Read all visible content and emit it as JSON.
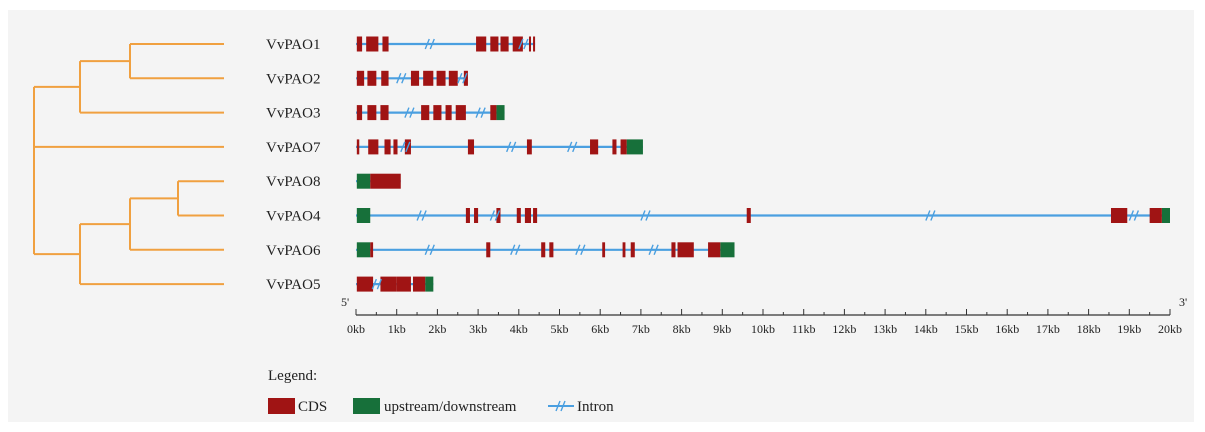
{
  "colors": {
    "background": "#f4f4f4",
    "tree": "#f0a040",
    "cds": "#a01414",
    "utr": "#17703a",
    "intron": "#4a9fe0",
    "axis": "#333333"
  },
  "genes": [
    {
      "name": "VvPAO1",
      "end": 4.4,
      "breaks": [
        1.8,
        4.1
      ],
      "cds": [
        [
          0.02,
          0.15
        ],
        [
          0.25,
          0.55
        ],
        [
          0.65,
          0.8
        ],
        [
          2.95,
          3.2
        ],
        [
          3.3,
          3.5
        ],
        [
          3.55,
          3.75
        ],
        [
          3.85,
          4.1
        ],
        [
          4.25,
          4.3
        ],
        [
          4.35,
          4.4
        ]
      ],
      "utr": []
    },
    {
      "name": "VvPAO2",
      "end": 2.75,
      "breaks": [
        1.1,
        2.6
      ],
      "cds": [
        [
          0.02,
          0.2
        ],
        [
          0.28,
          0.5
        ],
        [
          0.62,
          0.8
        ],
        [
          1.35,
          1.55
        ],
        [
          1.65,
          1.9
        ],
        [
          1.98,
          2.2
        ],
        [
          2.28,
          2.5
        ],
        [
          2.65,
          2.75
        ]
      ],
      "utr": []
    },
    {
      "name": "VvPAO3",
      "end": 3.65,
      "breaks": [
        1.3,
        3.05
      ],
      "cds": [
        [
          0.02,
          0.15
        ],
        [
          0.28,
          0.5
        ],
        [
          0.6,
          0.8
        ],
        [
          1.6,
          1.8
        ],
        [
          1.9,
          2.1
        ],
        [
          2.2,
          2.35
        ],
        [
          2.45,
          2.7
        ],
        [
          3.3,
          3.45
        ]
      ],
      "utr": [
        [
          3.45,
          3.65
        ]
      ]
    },
    {
      "name": "VvPAO7",
      "end": 7.05,
      "breaks": [
        1.2,
        3.8,
        5.3
      ],
      "cds": [
        [
          0.02,
          0.08
        ],
        [
          0.3,
          0.55
        ],
        [
          0.7,
          0.85
        ],
        [
          0.92,
          1.02
        ],
        [
          1.2,
          1.35
        ],
        [
          2.75,
          2.9
        ],
        [
          4.2,
          4.32
        ],
        [
          5.75,
          5.95
        ],
        [
          6.3,
          6.4
        ],
        [
          6.5,
          6.65
        ]
      ],
      "utr": [
        [
          6.65,
          7.05
        ]
      ]
    },
    {
      "name": "VvPAO8",
      "end": 1.1,
      "breaks": [],
      "cds": [
        [
          0.35,
          1.1
        ]
      ],
      "utr": [
        [
          0.02,
          0.35
        ]
      ]
    },
    {
      "name": "VvPAO4",
      "end": 20.0,
      "breaks": [
        1.6,
        3.4,
        7.1,
        14.1,
        19.1
      ],
      "cds": [
        [
          2.7,
          2.8
        ],
        [
          2.9,
          3.0
        ],
        [
          3.45,
          3.55
        ],
        [
          3.95,
          4.05
        ],
        [
          4.15,
          4.3
        ],
        [
          4.35,
          4.45
        ],
        [
          9.6,
          9.7
        ],
        [
          18.55,
          18.95
        ],
        [
          19.5,
          19.8
        ]
      ],
      "utr": [
        [
          0.02,
          0.35
        ],
        [
          19.8,
          20.0
        ]
      ]
    },
    {
      "name": "VvPAO6",
      "end": 9.3,
      "breaks": [
        1.8,
        3.9,
        5.5,
        7.3
      ],
      "cds": [
        [
          0.35,
          0.42
        ],
        [
          3.2,
          3.3
        ],
        [
          4.55,
          4.65
        ],
        [
          4.75,
          4.85
        ],
        [
          6.05,
          6.12
        ],
        [
          6.55,
          6.62
        ],
        [
          6.75,
          6.85
        ],
        [
          7.75,
          7.85
        ],
        [
          7.9,
          8.3
        ],
        [
          8.65,
          8.95
        ]
      ],
      "utr": [
        [
          0.02,
          0.35
        ],
        [
          8.95,
          9.3
        ]
      ]
    },
    {
      "name": "VvPAO5",
      "end": 1.9,
      "breaks": [
        0.5
      ],
      "cds": [
        [
          0.02,
          0.42
        ],
        [
          0.6,
          1.0
        ],
        [
          1.0,
          1.35
        ],
        [
          1.4,
          1.7
        ]
      ],
      "utr": [
        [
          1.7,
          1.9
        ]
      ]
    }
  ],
  "axis": {
    "start_label": "5'",
    "end_label": "3'",
    "max_kb": 20,
    "ticks": [
      "0kb",
      "1kb",
      "2kb",
      "3kb",
      "4kb",
      "5kb",
      "6kb",
      "7kb",
      "8kb",
      "9kb",
      "10kb",
      "11kb",
      "12kb",
      "13kb",
      "14kb",
      "15kb",
      "16kb",
      "17kb",
      "18kb",
      "19kb",
      "20kb"
    ]
  },
  "legend": {
    "title": "Legend:",
    "cds": "CDS",
    "utr": "upstream/downstream",
    "intron": "Intron"
  }
}
